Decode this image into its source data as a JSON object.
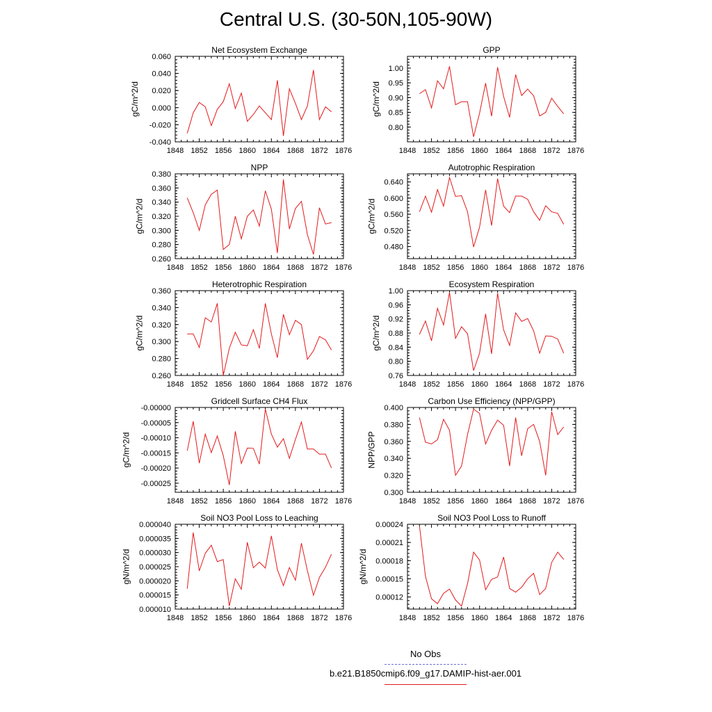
{
  "title": "Central U.S. (30-50N,105-90W)",
  "line_color": "#e31a1c",
  "obs_color": "#6b6bd6",
  "legend": [
    {
      "label": "No Obs",
      "style": "dashed",
      "color": "#6b6bd6"
    },
    {
      "label": "b.e21.B1850cmip6.f09_g17.DAMIP-hist-aer.001",
      "style": "solid",
      "color": "#e31a1c"
    }
  ],
  "chart_data": [
    {
      "type": "line",
      "title": "Net Ecosystem Exchange",
      "ylabel": "gC/m^2/d",
      "xlim": [
        1848,
        1876
      ],
      "xticks": [
        "1848",
        "1852",
        "1856",
        "1860",
        "1864",
        "1868",
        "1872",
        "1876"
      ],
      "ylim": [
        -0.04,
        0.06
      ],
      "yticks": [
        "-0.040",
        "-0.020",
        "0.000",
        "0.020",
        "0.040",
        "0.060"
      ],
      "x": [
        1850,
        1851,
        1852,
        1853,
        1854,
        1855,
        1856,
        1857,
        1858,
        1859,
        1860,
        1861,
        1862,
        1863,
        1864,
        1865,
        1866,
        1867,
        1868,
        1869,
        1870,
        1871,
        1872,
        1873,
        1874
      ],
      "series": [
        {
          "values": [
            -0.03,
            -0.006,
            0.006,
            0.001,
            -0.021,
            -0.002,
            0.007,
            0.028,
            -0.001,
            0.017,
            -0.016,
            -0.008,
            0.002,
            -0.006,
            -0.014,
            0.032,
            -0.033,
            0.022,
            0.005,
            -0.014,
            0.002,
            0.044,
            -0.014,
            0.001,
            -0.005
          ]
        }
      ]
    },
    {
      "type": "line",
      "title": "GPP",
      "ylabel": "gC/m^2/d",
      "xlim": [
        1848,
        1876
      ],
      "xticks": [
        "1848",
        "1852",
        "1856",
        "1860",
        "1864",
        "1868",
        "1872",
        "1876"
      ],
      "ylim": [
        0.75,
        1.04
      ],
      "yticks": [
        "0.80",
        "0.85",
        "0.90",
        "0.95",
        "1.00"
      ],
      "x": [
        1850,
        1851,
        1852,
        1853,
        1854,
        1855,
        1856,
        1857,
        1858,
        1859,
        1860,
        1861,
        1862,
        1863,
        1864,
        1865,
        1866,
        1867,
        1868,
        1869,
        1870,
        1871,
        1872,
        1873,
        1874
      ],
      "series": [
        {
          "values": [
            0.913,
            0.927,
            0.865,
            0.957,
            0.93,
            1.006,
            0.876,
            0.886,
            0.886,
            0.767,
            0.847,
            0.949,
            0.837,
            1.003,
            0.904,
            0.833,
            0.978,
            0.907,
            0.929,
            0.906,
            0.838,
            0.85,
            0.898,
            0.87,
            0.845
          ]
        }
      ]
    },
    {
      "type": "line",
      "title": "NPP",
      "ylabel": "gC/m^2/d",
      "xlim": [
        1848,
        1876
      ],
      "xticks": [
        "1848",
        "1852",
        "1856",
        "1860",
        "1864",
        "1868",
        "1872",
        "1876"
      ],
      "ylim": [
        0.26,
        0.38
      ],
      "yticks": [
        "0.260",
        "0.280",
        "0.300",
        "0.320",
        "0.340",
        "0.360",
        "0.380"
      ],
      "x": [
        1850,
        1851,
        1852,
        1853,
        1854,
        1855,
        1856,
        1857,
        1858,
        1859,
        1860,
        1861,
        1862,
        1863,
        1864,
        1865,
        1866,
        1867,
        1868,
        1869,
        1870,
        1871,
        1872,
        1873,
        1874
      ],
      "series": [
        {
          "values": [
            0.346,
            0.325,
            0.3,
            0.336,
            0.351,
            0.357,
            0.273,
            0.28,
            0.32,
            0.288,
            0.32,
            0.329,
            0.306,
            0.356,
            0.33,
            0.268,
            0.372,
            0.302,
            0.331,
            0.341,
            0.294,
            0.266,
            0.332,
            0.309,
            0.311
          ]
        }
      ]
    },
    {
      "type": "line",
      "title": "Autotrophic Respiration",
      "ylabel": "gC/m^2/d",
      "xlim": [
        1848,
        1876
      ],
      "xticks": [
        "1848",
        "1852",
        "1856",
        "1860",
        "1864",
        "1868",
        "1872",
        "1876"
      ],
      "ylim": [
        0.45,
        0.66
      ],
      "yticks": [
        "0.480",
        "0.520",
        "0.560",
        "0.600",
        "0.640"
      ],
      "x": [
        1850,
        1851,
        1852,
        1853,
        1854,
        1855,
        1856,
        1857,
        1858,
        1859,
        1860,
        1861,
        1862,
        1863,
        1864,
        1865,
        1866,
        1867,
        1868,
        1869,
        1870,
        1871,
        1872,
        1873,
        1874
      ],
      "series": [
        {
          "values": [
            0.566,
            0.605,
            0.565,
            0.621,
            0.58,
            0.651,
            0.604,
            0.606,
            0.566,
            0.479,
            0.528,
            0.62,
            0.532,
            0.648,
            0.58,
            0.564,
            0.605,
            0.605,
            0.597,
            0.566,
            0.545,
            0.581,
            0.566,
            0.562,
            0.535
          ]
        }
      ]
    },
    {
      "type": "line",
      "title": "Heterotrophic Respiration",
      "ylabel": "gC/m^2/d",
      "xlim": [
        1848,
        1876
      ],
      "xticks": [
        "1848",
        "1852",
        "1856",
        "1860",
        "1864",
        "1868",
        "1872",
        "1876"
      ],
      "ylim": [
        0.26,
        0.36
      ],
      "yticks": [
        "0.260",
        "0.280",
        "0.300",
        "0.320",
        "0.340",
        "0.360"
      ],
      "x": [
        1850,
        1851,
        1852,
        1853,
        1854,
        1855,
        1856,
        1857,
        1858,
        1859,
        1860,
        1861,
        1862,
        1863,
        1864,
        1865,
        1866,
        1867,
        1868,
        1869,
        1870,
        1871,
        1872,
        1873,
        1874
      ],
      "series": [
        {
          "values": [
            0.309,
            0.309,
            0.293,
            0.328,
            0.323,
            0.345,
            0.26,
            0.292,
            0.311,
            0.296,
            0.295,
            0.314,
            0.292,
            0.345,
            0.309,
            0.281,
            0.332,
            0.308,
            0.325,
            0.32,
            0.279,
            0.289,
            0.306,
            0.302,
            0.29
          ]
        }
      ]
    },
    {
      "type": "line",
      "title": "Ecosystem Respiration",
      "ylabel": "gC/m^2/d",
      "xlim": [
        1848,
        1876
      ],
      "xticks": [
        "1848",
        "1852",
        "1856",
        "1860",
        "1864",
        "1868",
        "1872",
        "1876"
      ],
      "ylim": [
        0.76,
        1.0
      ],
      "yticks": [
        "0.76",
        "0.80",
        "0.84",
        "0.88",
        "0.92",
        "0.96",
        "1.00"
      ],
      "x": [
        1850,
        1851,
        1852,
        1853,
        1854,
        1855,
        1856,
        1857,
        1858,
        1859,
        1860,
        1861,
        1862,
        1863,
        1864,
        1865,
        1866,
        1867,
        1868,
        1869,
        1870,
        1871,
        1872,
        1873,
        1874
      ],
      "series": [
        {
          "values": [
            0.876,
            0.914,
            0.858,
            0.95,
            0.903,
            0.995,
            0.865,
            0.898,
            0.878,
            0.774,
            0.823,
            0.934,
            0.821,
            0.993,
            0.889,
            0.845,
            0.937,
            0.913,
            0.921,
            0.886,
            0.823,
            0.872,
            0.871,
            0.863,
            0.823
          ]
        }
      ]
    },
    {
      "type": "line",
      "title": "Gridcell Surface CH4 Flux",
      "ylabel": "gC/m^2/d",
      "xlim": [
        1848,
        1876
      ],
      "xticks": [
        "1848",
        "1852",
        "1856",
        "1860",
        "1864",
        "1868",
        "1872",
        "1876"
      ],
      "ylim": [
        -0.00028,
        0.0
      ],
      "yticks": [
        "-0.00025",
        "-0.00020",
        "-0.00015",
        "-0.00010",
        "-0.00005",
        "-0.00000"
      ],
      "x": [
        1850,
        1851,
        1852,
        1853,
        1854,
        1855,
        1856,
        1857,
        1858,
        1859,
        1860,
        1861,
        1862,
        1863,
        1864,
        1865,
        1866,
        1867,
        1868,
        1869,
        1870,
        1871,
        1872,
        1873,
        1874
      ],
      "series": [
        {
          "values": [
            -0.000143,
            -4.6e-05,
            -0.000184,
            -8.8e-05,
            -0.000149,
            -9.4e-05,
            -0.000159,
            -0.000256,
            -7.9e-05,
            -0.000185,
            -0.000134,
            -0.000135,
            -0.000187,
            -5e-06,
            -8.8e-05,
            -0.000131,
            -0.000103,
            -0.000168,
            -0.000105,
            -4.8e-05,
            -0.000137,
            -0.000137,
            -0.000154,
            -0.000154,
            -0.0002
          ]
        }
      ]
    },
    {
      "type": "line",
      "title": "Carbon Use Efficiency (NPP/GPP)",
      "ylabel": "NPP/GPP",
      "xlim": [
        1848,
        1876
      ],
      "xticks": [
        "1848",
        "1852",
        "1856",
        "1860",
        "1864",
        "1868",
        "1872",
        "1876"
      ],
      "ylim": [
        0.3,
        0.4
      ],
      "yticks": [
        "0.300",
        "0.320",
        "0.340",
        "0.360",
        "0.380",
        "0.400"
      ],
      "x": [
        1850,
        1851,
        1852,
        1853,
        1854,
        1855,
        1856,
        1857,
        1858,
        1859,
        1860,
        1861,
        1862,
        1863,
        1864,
        1865,
        1866,
        1867,
        1868,
        1869,
        1870,
        1871,
        1872,
        1873,
        1874
      ],
      "series": [
        {
          "values": [
            0.388,
            0.359,
            0.357,
            0.362,
            0.386,
            0.373,
            0.32,
            0.331,
            0.368,
            0.398,
            0.393,
            0.357,
            0.373,
            0.385,
            0.379,
            0.331,
            0.388,
            0.343,
            0.375,
            0.38,
            0.36,
            0.32,
            0.395,
            0.368,
            0.377
          ]
        }
      ]
    },
    {
      "type": "line",
      "title": "Soil NO3 Pool Loss to Leaching",
      "ylabel": "gN/m^2/d",
      "xlim": [
        1848,
        1876
      ],
      "xticks": [
        "1848",
        "1852",
        "1856",
        "1860",
        "1864",
        "1868",
        "1872",
        "1876"
      ],
      "ylim": [
        1e-05,
        4e-05
      ],
      "yticks": [
        "0.000010",
        "0.000015",
        "0.000020",
        "0.000025",
        "0.000030",
        "0.000035",
        "0.000040"
      ],
      "x": [
        1850,
        1851,
        1852,
        1853,
        1854,
        1855,
        1856,
        1857,
        1858,
        1859,
        1860,
        1861,
        1862,
        1863,
        1864,
        1865,
        1866,
        1867,
        1868,
        1869,
        1870,
        1871,
        1872,
        1873,
        1874
      ],
      "series": [
        {
          "values": [
            1.72e-05,
            3.71e-05,
            2.35e-05,
            2.97e-05,
            3.26e-05,
            2.68e-05,
            2.75e-05,
            1.11e-05,
            2.07e-05,
            1.7e-05,
            3.36e-05,
            2.46e-05,
            2.66e-05,
            2.45e-05,
            3.59e-05,
            2.4e-05,
            1.83e-05,
            2.47e-05,
            2.02e-05,
            3.33e-05,
            2.36e-05,
            1.49e-05,
            2.12e-05,
            2.48e-05,
            2.94e-05
          ]
        }
      ]
    },
    {
      "type": "line",
      "title": "Soil NO3 Pool Loss to Runoff",
      "ylabel": "gN/m^2/d",
      "xlim": [
        1848,
        1876
      ],
      "xticks": [
        "1848",
        "1852",
        "1856",
        "1860",
        "1864",
        "1868",
        "1872",
        "1876"
      ],
      "ylim": [
        0.0001,
        0.00024
      ],
      "yticks": [
        "0.00012",
        "0.00015",
        "0.00018",
        "0.00021",
        "0.00024"
      ],
      "x": [
        1850,
        1851,
        1852,
        1853,
        1854,
        1855,
        1856,
        1857,
        1858,
        1859,
        1860,
        1861,
        1862,
        1863,
        1864,
        1865,
        1866,
        1867,
        1868,
        1869,
        1870,
        1871,
        1872,
        1873,
        1874
      ],
      "series": [
        {
          "values": [
            0.000237,
            0.000154,
            0.000117,
            0.000109,
            0.000126,
            0.000133,
            0.000115,
            0.000105,
            0.000142,
            0.000194,
            0.000181,
            0.000132,
            0.000149,
            0.000153,
            0.000186,
            0.000134,
            0.000128,
            0.000136,
            0.00015,
            0.000159,
            0.000124,
            0.000134,
            0.000177,
            0.000194,
            0.000182
          ]
        }
      ]
    }
  ]
}
